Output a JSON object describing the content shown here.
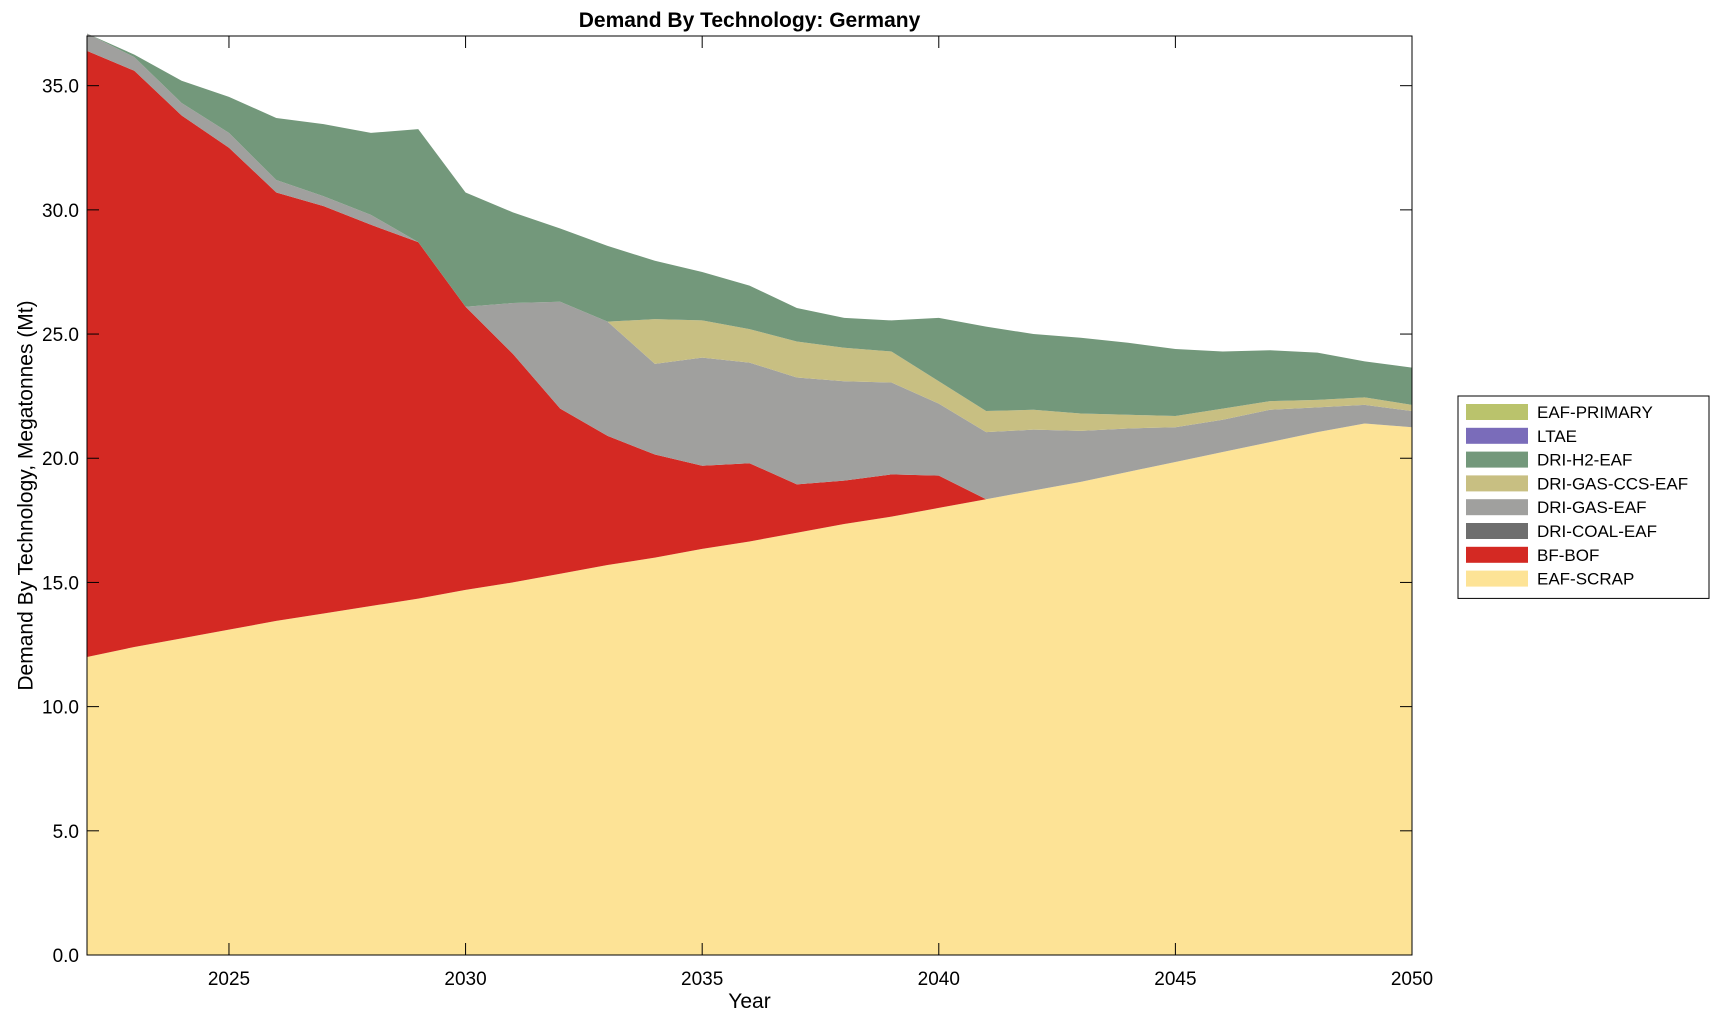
{
  "chart_data": {
    "type": "area",
    "title": "Demand By Technology: Germany",
    "xlabel": "Year",
    "ylabel": "Demand By Technology, Megatonnes (Mt)",
    "xlim": [
      2022,
      2050
    ],
    "ylim": [
      0,
      37
    ],
    "x_ticks": [
      2025,
      2030,
      2035,
      2040,
      2045,
      2050
    ],
    "y_ticks": [
      0,
      5,
      10,
      15,
      20,
      25,
      30,
      35
    ],
    "y_tick_labels": [
      "0.0",
      "5.0",
      "10.0",
      "15.0",
      "20.0",
      "25.0",
      "30.0",
      "35.0"
    ],
    "grid": false,
    "legend_position": "right",
    "x": [
      2022,
      2023,
      2024,
      2025,
      2026,
      2027,
      2028,
      2029,
      2030,
      2031,
      2032,
      2033,
      2034,
      2035,
      2036,
      2037,
      2038,
      2039,
      2040,
      2041,
      2042,
      2043,
      2044,
      2045,
      2046,
      2047,
      2048,
      2049,
      2050
    ],
    "series": [
      {
        "name": "EAF-SCRAP",
        "color": "#fde396",
        "values": [
          12.0,
          12.4,
          12.75,
          13.1,
          13.45,
          13.75,
          14.05,
          14.35,
          14.7,
          15.0,
          15.35,
          15.7,
          16.0,
          16.35,
          16.65,
          17.0,
          17.35,
          17.65,
          18.0,
          18.35,
          18.7,
          19.05,
          19.45,
          19.85,
          20.25,
          20.65,
          21.05,
          21.4,
          21.25
        ]
      },
      {
        "name": "BF-BOF",
        "color": "#d42923",
        "values": [
          24.4,
          23.2,
          21.05,
          19.4,
          17.25,
          16.4,
          15.35,
          14.35,
          11.4,
          9.2,
          6.65,
          5.2,
          4.15,
          3.35,
          3.15,
          1.95,
          1.75,
          1.7,
          1.3,
          0.0,
          0.0,
          0.0,
          0.0,
          0.0,
          0.0,
          0.0,
          0.0,
          0.0,
          0.0
        ]
      },
      {
        "name": "DRI-COAL-EAF",
        "color": "#6e6e6e",
        "values": [
          0,
          0,
          0,
          0,
          0,
          0,
          0,
          0,
          0,
          0,
          0,
          0,
          0,
          0,
          0,
          0,
          0,
          0,
          0,
          0,
          0,
          0,
          0,
          0,
          0,
          0,
          0,
          0,
          0
        ]
      },
      {
        "name": "DRI-GAS-EAF",
        "color": "#a0a09e",
        "values": [
          0.7,
          0.55,
          0.5,
          0.6,
          0.5,
          0.4,
          0.4,
          0.0,
          0.0,
          2.05,
          4.3,
          4.6,
          3.65,
          4.35,
          4.05,
          4.3,
          4.0,
          3.7,
          2.9,
          2.7,
          2.45,
          2.05,
          1.75,
          1.4,
          1.3,
          1.3,
          1.0,
          0.75,
          0.65
        ]
      },
      {
        "name": "DRI-GAS-CCS-EAF",
        "color": "#c8bf82",
        "values": [
          0,
          0,
          0,
          0,
          0,
          0,
          0,
          0,
          0,
          0,
          0,
          0,
          1.8,
          1.5,
          1.35,
          1.45,
          1.35,
          1.25,
          0.9,
          0.85,
          0.8,
          0.7,
          0.55,
          0.45,
          0.45,
          0.35,
          0.3,
          0.3,
          0.25
        ]
      },
      {
        "name": "DRI-H2-EAF",
        "color": "#73987b",
        "values": [
          0.0,
          0.1,
          0.9,
          1.45,
          2.5,
          2.9,
          3.3,
          4.55,
          4.6,
          3.65,
          2.95,
          3.05,
          2.35,
          1.95,
          1.75,
          1.35,
          1.2,
          1.25,
          2.55,
          3.4,
          3.05,
          3.05,
          2.9,
          2.7,
          2.3,
          2.05,
          1.9,
          1.45,
          1.5
        ]
      },
      {
        "name": "LTAE",
        "color": "#7a6cba",
        "values": [
          0,
          0,
          0,
          0,
          0,
          0,
          0,
          0,
          0,
          0,
          0,
          0,
          0,
          0,
          0,
          0,
          0,
          0,
          0,
          0,
          0,
          0,
          0,
          0,
          0,
          0,
          0,
          0,
          0
        ]
      },
      {
        "name": "EAF-PRIMARY",
        "color": "#bac36c",
        "values": [
          0,
          0,
          0,
          0,
          0,
          0,
          0,
          0,
          0,
          0,
          0,
          0,
          0,
          0,
          0,
          0,
          0,
          0,
          0,
          0,
          0,
          0,
          0,
          0,
          0,
          0,
          0,
          0,
          0
        ]
      }
    ],
    "legend_order": [
      "EAF-PRIMARY",
      "LTAE",
      "DRI-H2-EAF",
      "DRI-GAS-CCS-EAF",
      "DRI-GAS-EAF",
      "DRI-COAL-EAF",
      "BF-BOF",
      "EAF-SCRAP"
    ]
  }
}
